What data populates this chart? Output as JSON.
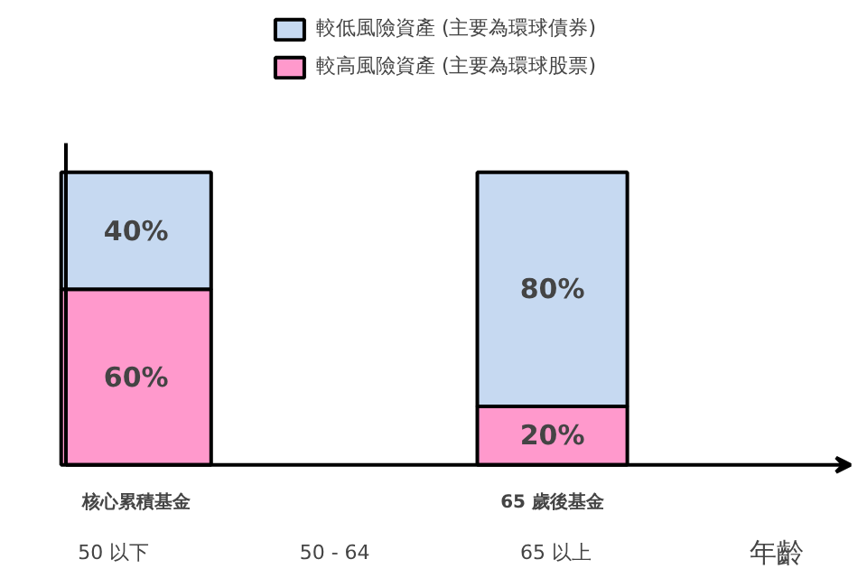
{
  "chart_data": {
    "type": "bar",
    "stacked": true,
    "categories": [
      "核心累積基金",
      "65 歲後基金"
    ],
    "series": [
      {
        "name": "較高風險資產 (主要為環球股票)",
        "color": "#ff99cc",
        "values": [
          60,
          20
        ],
        "value_labels": [
          "60%",
          "20%"
        ]
      },
      {
        "name": "較低風險資產 (主要為環球債券)",
        "color": "#c6d9f1",
        "values": [
          40,
          80
        ],
        "value_labels": [
          "40%",
          "80%"
        ]
      }
    ],
    "legend": "top",
    "annotations": [
      "50 以下",
      "50 - 64",
      "65 以上",
      "年齡"
    ]
  }
}
